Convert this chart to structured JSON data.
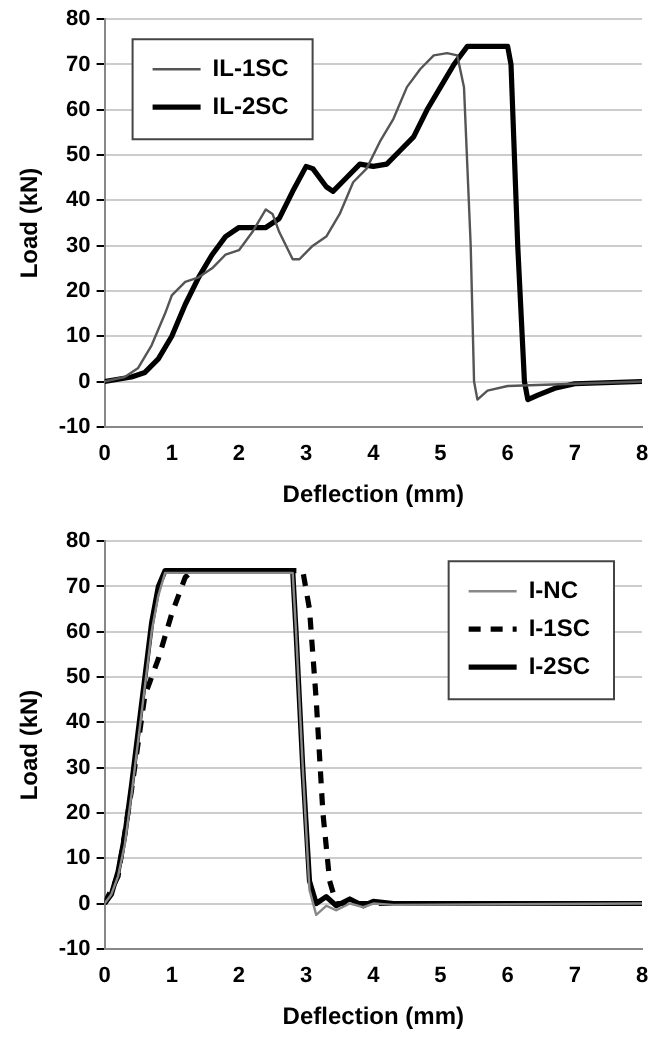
{
  "chart_data": [
    {
      "type": "line",
      "xlabel": "Deflection (mm)",
      "ylabel": "Load (kN)",
      "xlim": [
        0,
        8
      ],
      "xticks": [
        0,
        1,
        2,
        3,
        4,
        5,
        6,
        7,
        8
      ],
      "ylim": [
        -10,
        80
      ],
      "yticks": [
        -10,
        0,
        10,
        20,
        30,
        40,
        50,
        60,
        70,
        80
      ],
      "grid": "y",
      "legend": "top left",
      "marker": "none",
      "line_style": "solid",
      "series": [
        {
          "name": "IL-1SC",
          "color": "#555555",
          "x": [
            0,
            0.3,
            0.5,
            0.7,
            0.9,
            1.0,
            1.2,
            1.4,
            1.6,
            1.8,
            2.0,
            2.2,
            2.4,
            2.5,
            2.6,
            2.8,
            2.9,
            3.1,
            3.3,
            3.5,
            3.7,
            3.9,
            4.1,
            4.3,
            4.5,
            4.7,
            4.9,
            5.1,
            5.25,
            5.35,
            5.45,
            5.5,
            5.55,
            5.7,
            6.0,
            7.0,
            8.0
          ],
          "values": [
            0,
            1,
            3,
            8,
            15,
            19,
            22,
            23,
            25,
            28,
            29,
            33,
            38,
            37,
            33,
            27,
            27,
            30,
            32,
            37,
            44,
            47,
            53,
            58,
            65,
            69,
            72,
            72.5,
            72,
            65,
            30,
            0,
            -4,
            -2,
            -1,
            -0.5,
            0
          ]
        },
        {
          "name": "IL-2SC",
          "color": "#000000",
          "x": [
            0,
            0.4,
            0.6,
            0.8,
            1.0,
            1.2,
            1.4,
            1.6,
            1.8,
            2.0,
            2.2,
            2.4,
            2.6,
            2.8,
            3.0,
            3.1,
            3.3,
            3.4,
            3.6,
            3.8,
            4.0,
            4.2,
            4.4,
            4.6,
            4.8,
            5.0,
            5.2,
            5.4,
            6.0,
            6.05,
            6.15,
            6.25,
            6.3,
            6.45,
            6.7,
            7.0,
            8.0
          ],
          "values": [
            0,
            1,
            2,
            5,
            10,
            17,
            23,
            28,
            32,
            34,
            34,
            34,
            36,
            42,
            47.5,
            47,
            43,
            42,
            45,
            48,
            47.5,
            48,
            51,
            54,
            60,
            65,
            70,
            74,
            74,
            70,
            30,
            0,
            -4,
            -3,
            -1.5,
            -0.5,
            0
          ]
        }
      ]
    },
    {
      "type": "line",
      "xlabel": "Deflection (mm)",
      "ylabel": "Load (kN)",
      "xlim": [
        0,
        8
      ],
      "xticks": [
        0,
        1,
        2,
        3,
        4,
        5,
        6,
        7,
        8
      ],
      "ylim": [
        -10,
        80
      ],
      "yticks": [
        -10,
        0,
        10,
        20,
        30,
        40,
        50,
        60,
        70,
        80
      ],
      "grid": "y",
      "legend": "top right",
      "marker": "none",
      "line_style": "solid",
      "series": [
        {
          "name": "I-NC",
          "color": "#888888",
          "x": [
            0,
            0.1,
            0.2,
            0.3,
            0.4,
            0.5,
            0.6,
            0.7,
            0.8,
            0.9,
            2.8,
            2.85,
            2.95,
            3.05,
            3.15,
            3.3,
            3.45,
            3.65,
            3.85,
            4.0,
            4.3,
            8.0
          ],
          "values": [
            0,
            2,
            6,
            13,
            24,
            36,
            48,
            60,
            68,
            73,
            73,
            60,
            30,
            3,
            -2.5,
            -0.5,
            -1.5,
            0,
            -0.8,
            0,
            -0.3,
            0
          ]
        },
        {
          "name": "I-1SC",
          "color": "#000000",
          "line_style": "dashed",
          "x": [
            0,
            0.2,
            0.4,
            0.6,
            0.8,
            1.0,
            1.2,
            1.3,
            2.95,
            3.05,
            3.15,
            3.25,
            3.35,
            3.45,
            8.0
          ],
          "values": [
            0,
            6,
            25,
            46,
            54,
            64,
            72,
            73.5,
            73.5,
            65,
            45,
            20,
            5,
            0,
            0
          ]
        },
        {
          "name": "I-2SC",
          "color": "#000000",
          "x": [
            0,
            0.1,
            0.2,
            0.3,
            0.4,
            0.5,
            0.6,
            0.7,
            0.8,
            0.9,
            2.8,
            2.85,
            2.95,
            3.05,
            3.15,
            3.3,
            3.45,
            3.65,
            3.85,
            4.0,
            4.3,
            8.0
          ],
          "values": [
            0,
            2,
            7,
            15,
            26,
            38,
            50,
            62,
            70,
            73.5,
            73.5,
            60,
            30,
            5,
            0,
            1.5,
            -0.5,
            1,
            -0.5,
            0.5,
            0,
            0
          ]
        }
      ]
    }
  ]
}
